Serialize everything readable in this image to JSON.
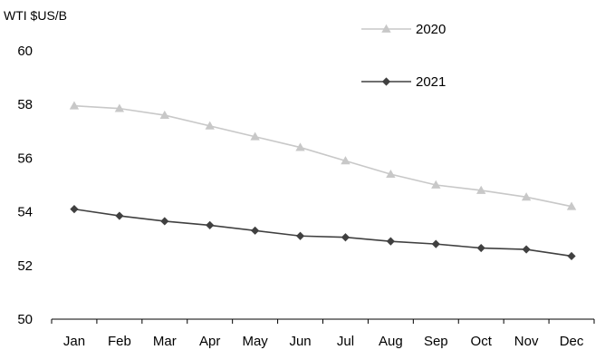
{
  "chart_data": {
    "type": "line",
    "ylabel": "WTI $US/B",
    "xlabel": "",
    "title": "",
    "categories": [
      "Jan",
      "Feb",
      "Mar",
      "Apr",
      "May",
      "Jun",
      "Jul",
      "Aug",
      "Sep",
      "Oct",
      "Nov",
      "Dec"
    ],
    "ylim": [
      50,
      60
    ],
    "yticks": [
      50,
      52,
      54,
      56,
      58,
      60
    ],
    "grid": false,
    "legend_position": "top-right",
    "series": [
      {
        "name": "2020",
        "color": "#c8c8c8",
        "marker": "triangle",
        "values": [
          57.95,
          57.85,
          57.6,
          57.2,
          56.8,
          56.4,
          55.9,
          55.4,
          55.0,
          54.8,
          54.55,
          54.2
        ]
      },
      {
        "name": "2021",
        "color": "#404040",
        "marker": "diamond",
        "values": [
          54.1,
          53.85,
          53.65,
          53.5,
          53.3,
          53.1,
          53.05,
          52.9,
          52.8,
          52.65,
          52.6,
          52.35
        ]
      }
    ]
  }
}
